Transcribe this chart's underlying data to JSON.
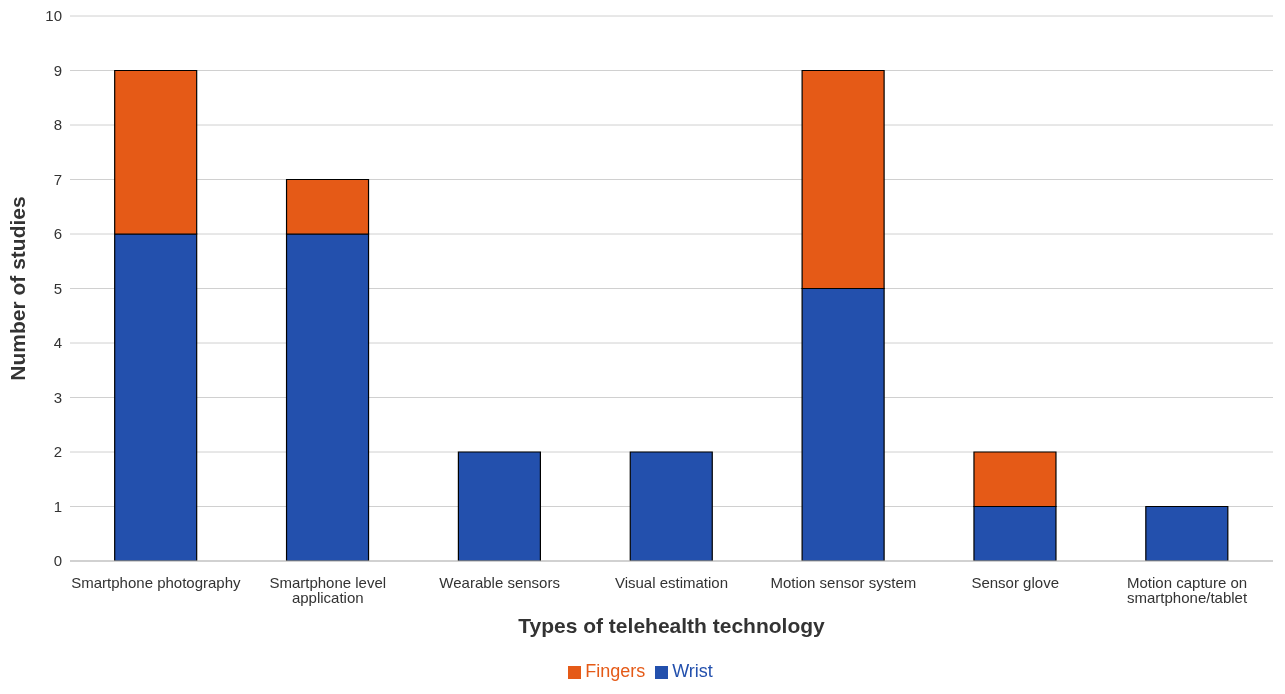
{
  "chart_data": {
    "type": "bar",
    "stacked": true,
    "xlabel": "Types of telehealth technology",
    "ylabel": "Number of studies",
    "categories": [
      "Smartphone photography",
      "Smartphone level application",
      "Wearable sensors",
      "Visual estimation",
      "Motion sensor system",
      "Sensor glove",
      "Motion capture on smartphone/tablet"
    ],
    "series": [
      {
        "name": "Wrist",
        "color": "#2350ad",
        "values": [
          6,
          6,
          2,
          2,
          5,
          1,
          1
        ]
      },
      {
        "name": "Fingers",
        "color": "#e55a17",
        "values": [
          3,
          1,
          0,
          0,
          4,
          1,
          0
        ]
      }
    ],
    "ylim": [
      0,
      10
    ],
    "yticks": [
      0,
      1,
      2,
      3,
      4,
      5,
      6,
      7,
      8,
      9,
      10
    ],
    "grid": "y",
    "legend": "bottom"
  }
}
